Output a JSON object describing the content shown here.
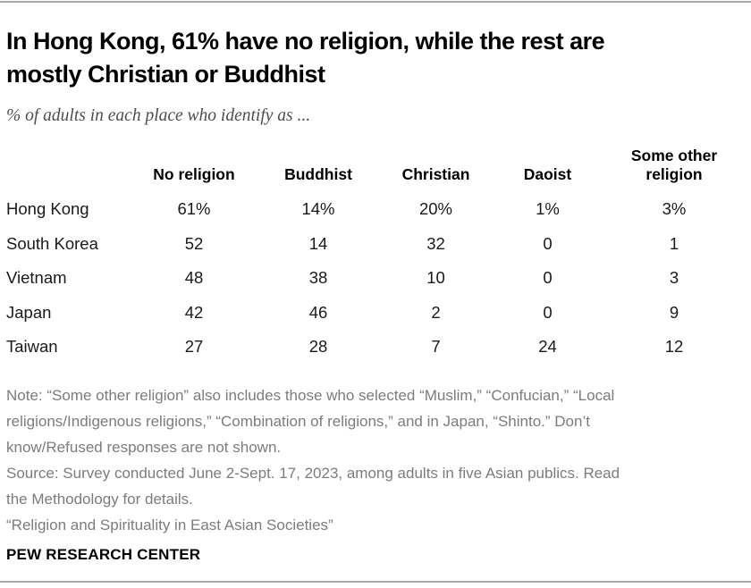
{
  "header": {
    "title_lines": [
      "In Hong Kong, 61% have no religion, while the rest are",
      "mostly Christian or Buddhist"
    ],
    "subtitle": "% of adults in each place who identify as ..."
  },
  "table": {
    "columns": [
      "No religion",
      "Buddhist",
      "Christian",
      "Daoist",
      "Some other religion"
    ],
    "rows": [
      {
        "label": "Hong Kong",
        "values": [
          "61%",
          "14%",
          "20%",
          "1%",
          "3%"
        ]
      },
      {
        "label": "South Korea",
        "values": [
          "52",
          "14",
          "32",
          "0",
          "1"
        ]
      },
      {
        "label": "Vietnam",
        "values": [
          "48",
          "38",
          "10",
          "0",
          "3"
        ]
      },
      {
        "label": "Japan",
        "values": [
          "42",
          "46",
          "2",
          "0",
          "9"
        ]
      },
      {
        "label": "Taiwan",
        "values": [
          "27",
          "28",
          "7",
          "24",
          "12"
        ]
      }
    ]
  },
  "chart_data": {
    "type": "table",
    "title": "In Hong Kong, 61% have no religion, while the rest are mostly Christian or Buddhist",
    "subtitle": "% of adults in each place who identify as ...",
    "categories": [
      "Hong Kong",
      "South Korea",
      "Vietnam",
      "Japan",
      "Taiwan"
    ],
    "series": [
      {
        "name": "No religion",
        "values": [
          61,
          52,
          48,
          42,
          27
        ]
      },
      {
        "name": "Buddhist",
        "values": [
          14,
          14,
          38,
          46,
          28
        ]
      },
      {
        "name": "Christian",
        "values": [
          20,
          32,
          10,
          2,
          7
        ]
      },
      {
        "name": "Daoist",
        "values": [
          1,
          0,
          0,
          0,
          24
        ]
      },
      {
        "name": "Some other religion",
        "values": [
          3,
          1,
          3,
          9,
          12
        ]
      }
    ],
    "unit": "%"
  },
  "notes": {
    "lines": [
      "Note: “Some other religion” also includes those who selected “Muslim,” “Confucian,” “Local",
      "religions/Indigenous religions,” “Combination of religions,” and in Japan, “Shinto.” Don’t",
      "know/Refused responses are not shown.",
      "Source: Survey conducted June 2-Sept. 17, 2023, among adults in five Asian publics. Read",
      "the Methodology for details.",
      "“Religion and Spirituality in East Asian Societies”"
    ]
  },
  "footer": {
    "brand": "PEW RESEARCH CENTER"
  },
  "colors": {
    "background": "#ffffff",
    "title": "#000000",
    "subtitle": "#4d4d4d",
    "table_text": "#1a1a1a",
    "notes": "#7c7c7e",
    "rule": "#aaaaaa"
  }
}
